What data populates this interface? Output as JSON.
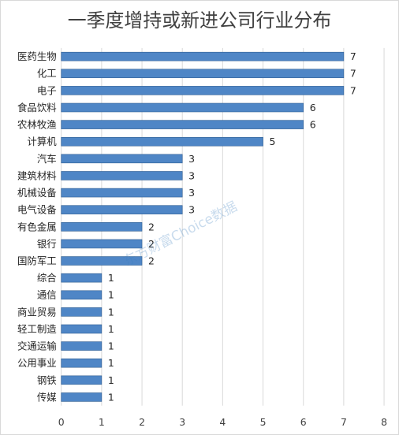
{
  "chart_data": {
    "type": "bar",
    "orientation": "horizontal",
    "title": "一季度增持或新进公司行业分布",
    "categories": [
      "医药生物",
      "化工",
      "电子",
      "食品饮料",
      "农林牧渔",
      "计算机",
      "汽车",
      "建筑材料",
      "机械设备",
      "电气设备",
      "有色金属",
      "银行",
      "国防军工",
      "综合",
      "通信",
      "商业贸易",
      "轻工制造",
      "交通运输",
      "公用事业",
      "钢铁",
      "传媒"
    ],
    "values": [
      7,
      7,
      7,
      6,
      6,
      5,
      3,
      3,
      3,
      3,
      2,
      2,
      2,
      1,
      1,
      1,
      1,
      1,
      1,
      1,
      1
    ],
    "xlim": [
      0,
      8
    ],
    "xticks": [
      0,
      1,
      2,
      3,
      4,
      5,
      6,
      7,
      8
    ],
    "grid": true,
    "legend": "none",
    "data_labels": true,
    "bar_color": "#4f86c6",
    "bar_edge_color": "#2f5d91",
    "grid_color": "#d9d9d9"
  },
  "watermark": "东方财富Choice数据"
}
